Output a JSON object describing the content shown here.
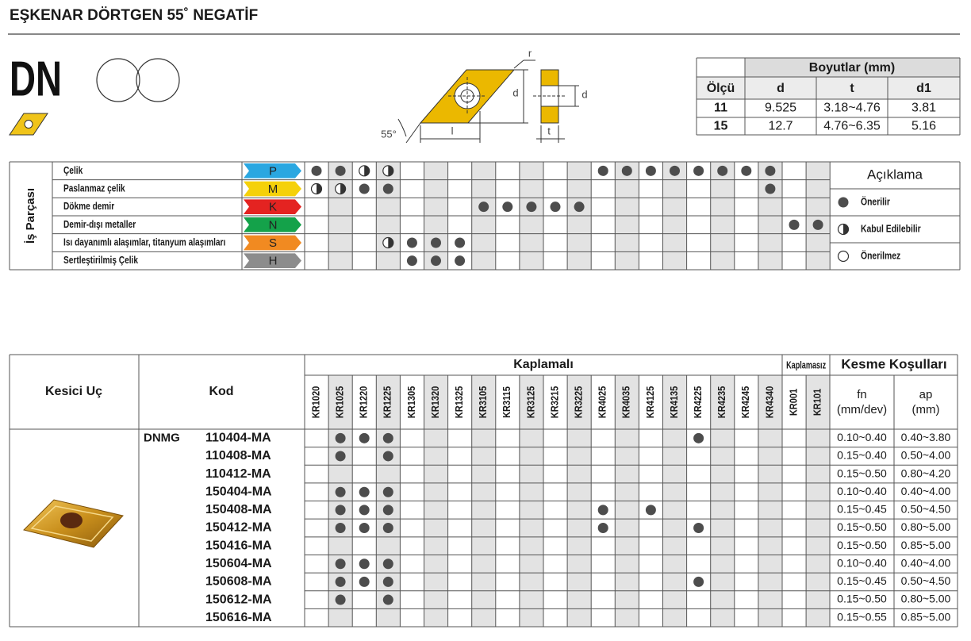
{
  "header": {
    "title": "EŞKENAR DÖRTGEN 55˚ NEGATİF",
    "logo": "DN"
  },
  "diagram": {
    "labels": [
      "r",
      "d",
      "d",
      "55°",
      "l",
      "t"
    ]
  },
  "dimensions": {
    "title": "Boyutlar (mm)",
    "columns": [
      "Ölçü",
      "d",
      "t",
      "d1"
    ],
    "rows": [
      [
        "11",
        "9.525",
        "3.18~4.76",
        "3.81"
      ],
      [
        "15",
        "12.7",
        "4.76~6.35",
        "5.16"
      ]
    ]
  },
  "workpiece": {
    "side_label": "İş Parçası",
    "rows": [
      {
        "name": "Çelik",
        "code": "P",
        "color": "#2aa7e1",
        "cells": [
          "full",
          "full",
          "half",
          "half",
          null,
          null,
          null,
          null,
          null,
          null,
          null,
          null,
          "full",
          "full",
          "full",
          "full",
          "full",
          "full",
          "full",
          "full",
          null,
          null
        ]
      },
      {
        "name": "Paslanmaz çelik",
        "code": "M",
        "color": "#f5d10a",
        "cells": [
          "half",
          "half",
          "full",
          "full",
          null,
          null,
          null,
          null,
          null,
          null,
          null,
          null,
          null,
          null,
          null,
          null,
          null,
          null,
          null,
          "full",
          null,
          null
        ]
      },
      {
        "name": "Dökme demir",
        "code": "K",
        "color": "#e42321",
        "cells": [
          null,
          null,
          null,
          null,
          null,
          null,
          null,
          "full",
          "full",
          "full",
          "full",
          "full",
          null,
          null,
          null,
          null,
          null,
          null,
          null,
          null,
          null,
          null
        ]
      },
      {
        "name": "Demir-dışı metaller",
        "code": "N",
        "color": "#14a24a",
        "cells": [
          null,
          null,
          null,
          null,
          null,
          null,
          null,
          null,
          null,
          null,
          null,
          null,
          null,
          null,
          null,
          null,
          null,
          null,
          null,
          null,
          "full",
          "full"
        ]
      },
      {
        "name": "Isı dayanımlı alaşımlar, titanyum alaşımları",
        "code": "S",
        "color": "#f18a21",
        "cells": [
          null,
          null,
          null,
          "half",
          "full",
          "full",
          "full",
          null,
          null,
          null,
          null,
          null,
          null,
          null,
          null,
          null,
          null,
          null,
          null,
          null,
          null,
          null
        ]
      },
      {
        "name": "Sertleştirilmiş Çelik",
        "code": "H",
        "color": "#8c8c8c",
        "cells": [
          null,
          null,
          null,
          null,
          "full",
          "full",
          "full",
          null,
          null,
          null,
          null,
          null,
          null,
          null,
          null,
          null,
          null,
          null,
          null,
          null,
          null,
          null
        ]
      }
    ]
  },
  "legend": {
    "title": "Açıklama",
    "items": [
      {
        "symbol": "full",
        "label": "Önerilir"
      },
      {
        "symbol": "half",
        "label": "Kabul Edilebilir"
      },
      {
        "symbol": "empty",
        "label": "Önerilmez"
      }
    ]
  },
  "products": {
    "insert_header": "Kesici Uç",
    "code_header": "Kod",
    "coated_header": "Kaplamalı",
    "uncoated_header": "Kaplamasız",
    "conditions_header": "Kesme Koşulları",
    "fn_header": [
      "fn",
      "(mm/dev)"
    ],
    "ap_header": [
      "ap",
      "(mm)"
    ],
    "coated_grades": [
      "KR1020",
      "KR1025",
      "KR1220",
      "KR1225",
      "KR1305",
      "KR1320",
      "KR1325",
      "KR3105",
      "KR3115",
      "KR3125",
      "KR3215",
      "KR3225",
      "KR4025",
      "KR4035",
      "KR4125",
      "KR4135",
      "KR4225",
      "KR4235",
      "KR4245",
      "KR4340"
    ],
    "uncoated_grades": [
      "KR001",
      "KR101"
    ],
    "prefix": "DNMG",
    "rows": [
      {
        "code": "110404-MA",
        "fn": "0.10~0.40",
        "ap": "0.40~3.80",
        "cells": [
          null,
          "full",
          "full",
          "full",
          null,
          null,
          null,
          null,
          null,
          null,
          null,
          null,
          null,
          null,
          null,
          null,
          "full",
          null,
          null,
          null,
          null,
          null
        ]
      },
      {
        "code": "110408-MA",
        "fn": "0.15~0.40",
        "ap": "0.50~4.00",
        "cells": [
          null,
          "full",
          null,
          "full",
          null,
          null,
          null,
          null,
          null,
          null,
          null,
          null,
          null,
          null,
          null,
          null,
          null,
          null,
          null,
          null,
          null,
          null
        ]
      },
      {
        "code": "110412-MA",
        "fn": "0.15~0.50",
        "ap": "0.80~4.20",
        "cells": [
          null,
          null,
          null,
          null,
          null,
          null,
          null,
          null,
          null,
          null,
          null,
          null,
          null,
          null,
          null,
          null,
          null,
          null,
          null,
          null,
          null,
          null
        ]
      },
      {
        "code": "150404-MA",
        "fn": "0.10~0.40",
        "ap": "0.40~4.00",
        "cells": [
          null,
          "full",
          "full",
          "full",
          null,
          null,
          null,
          null,
          null,
          null,
          null,
          null,
          null,
          null,
          null,
          null,
          null,
          null,
          null,
          null,
          null,
          null
        ]
      },
      {
        "code": "150408-MA",
        "fn": "0.15~0.45",
        "ap": "0.50~4.50",
        "cells": [
          null,
          "full",
          "full",
          "full",
          null,
          null,
          null,
          null,
          null,
          null,
          null,
          null,
          "full",
          null,
          "full",
          null,
          null,
          null,
          null,
          null,
          null,
          null
        ]
      },
      {
        "code": "150412-MA",
        "fn": "0.15~0.50",
        "ap": "0.80~5.00",
        "cells": [
          null,
          "full",
          "full",
          "full",
          null,
          null,
          null,
          null,
          null,
          null,
          null,
          null,
          "full",
          null,
          null,
          null,
          "full",
          null,
          null,
          null,
          null,
          null
        ]
      },
      {
        "code": "150416-MA",
        "fn": "0.15~0.50",
        "ap": "0.85~5.00",
        "cells": [
          null,
          null,
          null,
          null,
          null,
          null,
          null,
          null,
          null,
          null,
          null,
          null,
          null,
          null,
          null,
          null,
          null,
          null,
          null,
          null,
          null,
          null
        ]
      },
      {
        "code": "150604-MA",
        "fn": "0.10~0.40",
        "ap": "0.40~4.00",
        "cells": [
          null,
          "full",
          "full",
          "full",
          null,
          null,
          null,
          null,
          null,
          null,
          null,
          null,
          null,
          null,
          null,
          null,
          null,
          null,
          null,
          null,
          null,
          null
        ]
      },
      {
        "code": "150608-MA",
        "fn": "0.15~0.45",
        "ap": "0.50~4.50",
        "cells": [
          null,
          "full",
          "full",
          "full",
          null,
          null,
          null,
          null,
          null,
          null,
          null,
          null,
          null,
          null,
          null,
          null,
          "full",
          null,
          null,
          null,
          null,
          null
        ]
      },
      {
        "code": "150612-MA",
        "fn": "0.15~0.50",
        "ap": "0.80~5.00",
        "cells": [
          null,
          "full",
          null,
          "full",
          null,
          null,
          null,
          null,
          null,
          null,
          null,
          null,
          null,
          null,
          null,
          null,
          null,
          null,
          null,
          null,
          null,
          null
        ]
      },
      {
        "code": "150616-MA",
        "fn": "0.15~0.55",
        "ap": "0.85~5.00",
        "cells": [
          null,
          null,
          null,
          null,
          null,
          null,
          null,
          null,
          null,
          null,
          null,
          null,
          null,
          null,
          null,
          null,
          null,
          null,
          null,
          null,
          null,
          null
        ]
      }
    ]
  }
}
